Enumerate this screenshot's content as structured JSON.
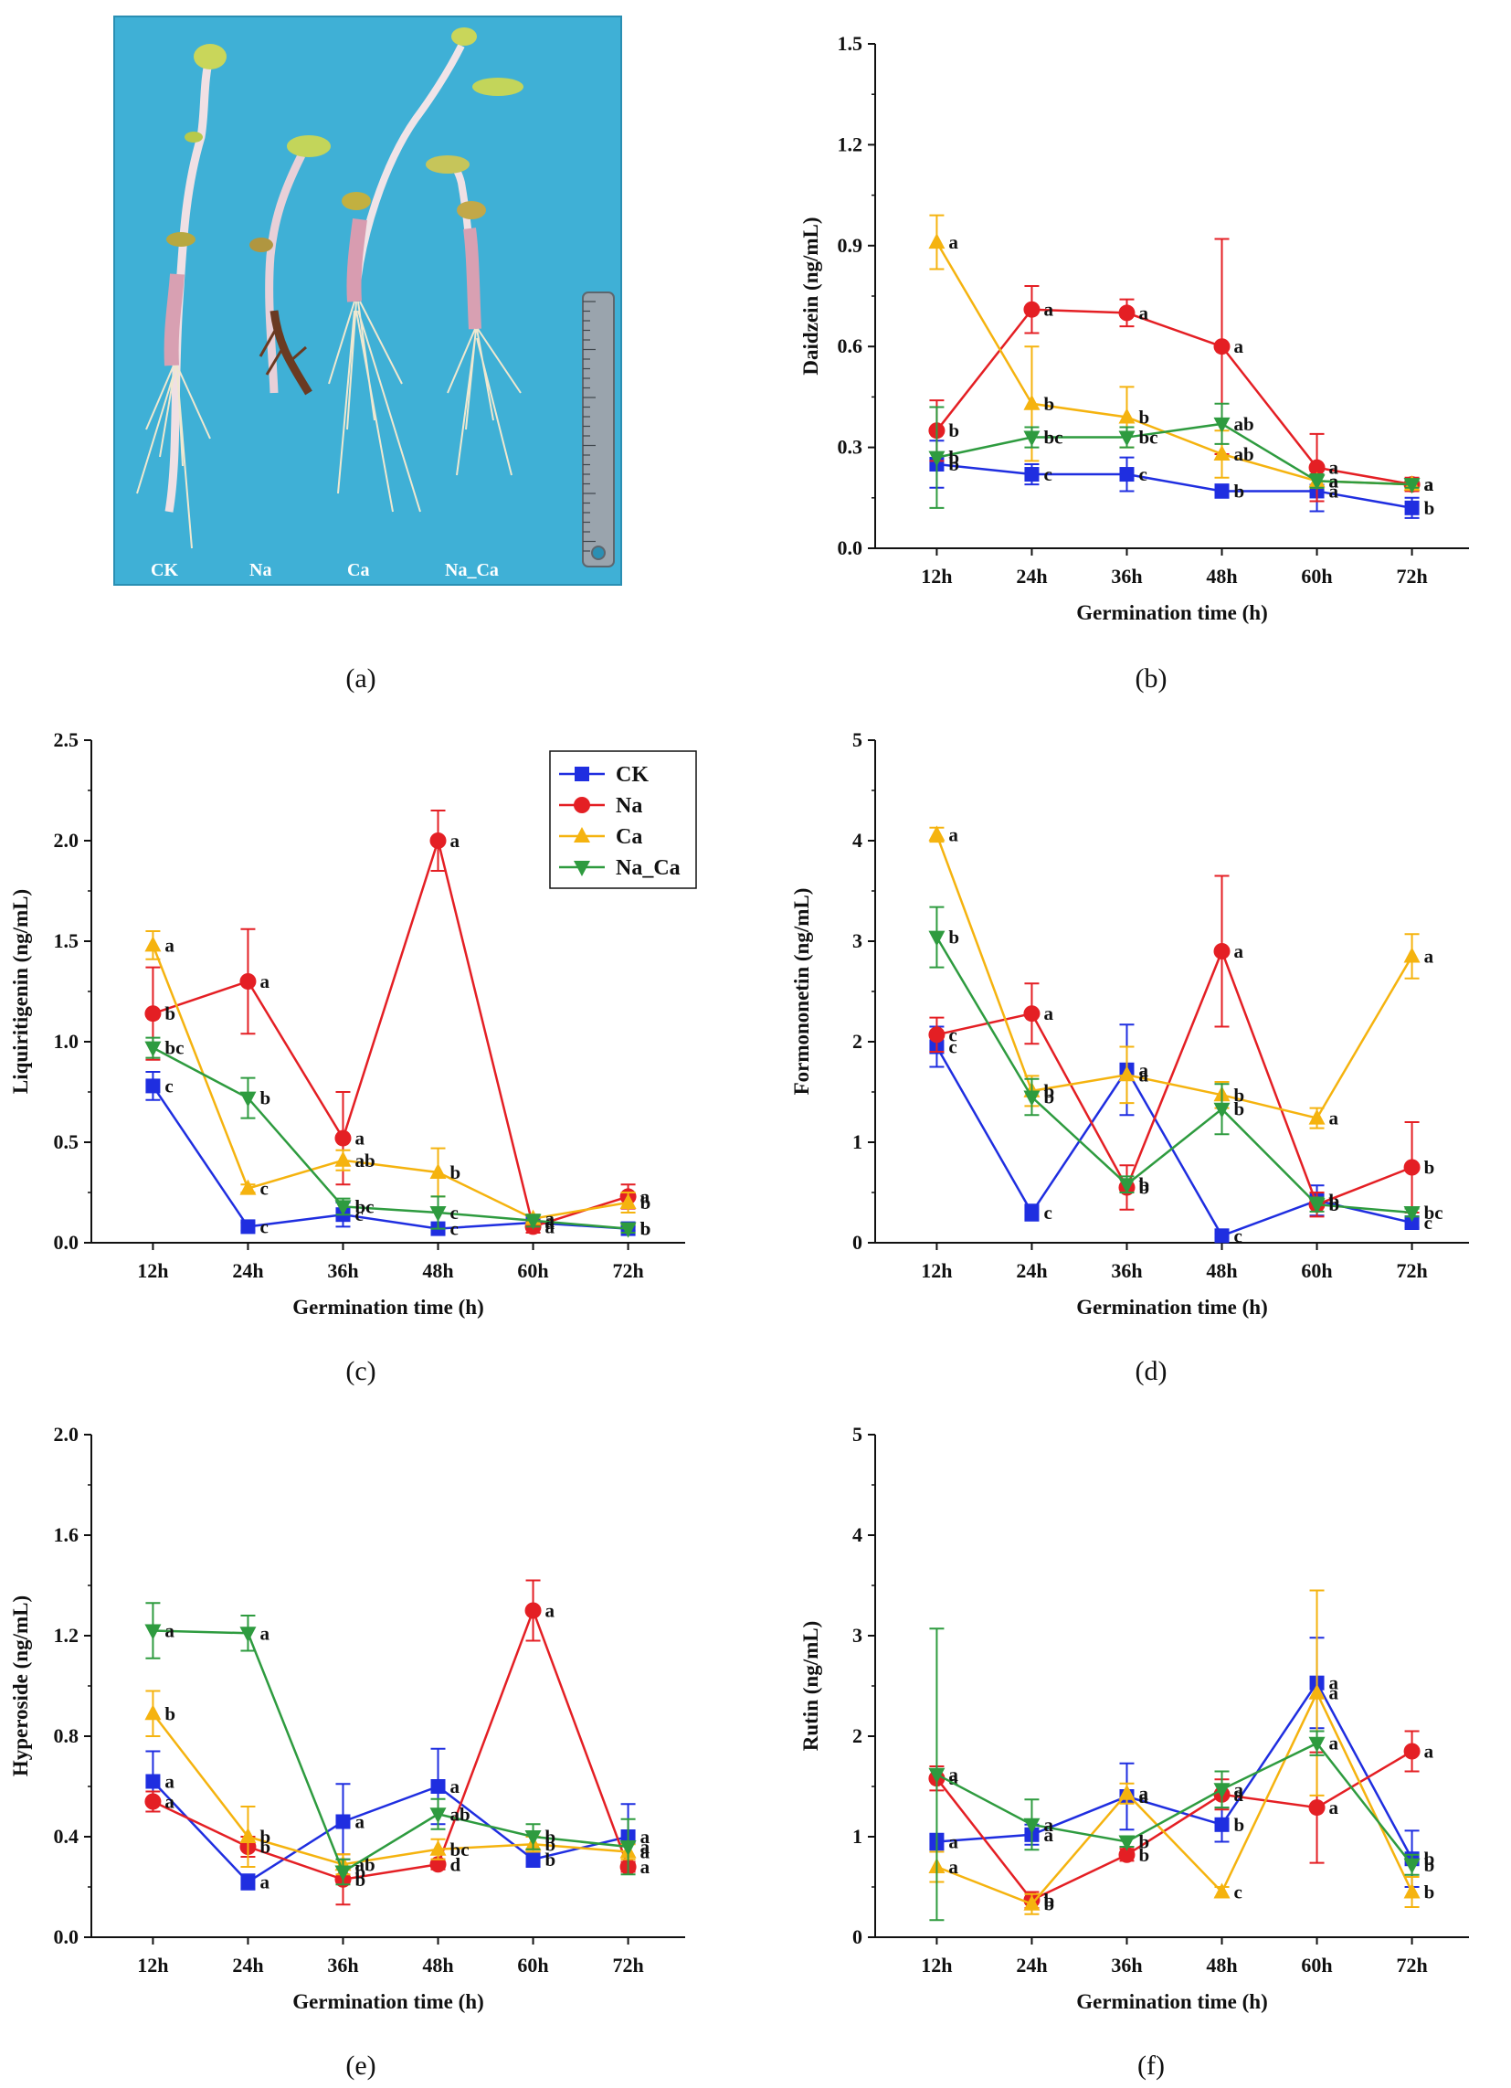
{
  "photo": {
    "labels": [
      "CK",
      "Na",
      "Ca",
      "Na_Ca"
    ],
    "background_color": "#3fb0d6"
  },
  "legend": [
    {
      "name": "CK",
      "color": "#1f2ee0",
      "marker": "square"
    },
    {
      "name": "Na",
      "color": "#e41f24",
      "marker": "circle"
    },
    {
      "name": "Ca",
      "color": "#f5b30f",
      "marker": "triangle-up"
    },
    {
      "name": "Na_Ca",
      "color": "#2e9b3f",
      "marker": "triangle-down"
    }
  ],
  "chart_data": [
    {
      "panel": "b",
      "caption": "(b)",
      "type": "line",
      "ylabel": "Daidzein (ng/mL)",
      "xlabel": "Germination time (h)",
      "ylim": [
        0,
        1.5
      ],
      "yticks": [
        0.0,
        0.3,
        0.6,
        0.9,
        1.2,
        1.5
      ],
      "categories": [
        "12h",
        "24h",
        "36h",
        "48h",
        "60h",
        "72h"
      ],
      "series": [
        {
          "name": "CK",
          "values": [
            0.25,
            0.22,
            0.22,
            0.17,
            0.17,
            0.12
          ],
          "errors": [
            0.07,
            0.03,
            0.05,
            0.02,
            0.06,
            0.03
          ],
          "labels": [
            "b",
            "c",
            "c",
            "b",
            "a",
            "b"
          ]
        },
        {
          "name": "Na",
          "values": [
            0.35,
            0.71,
            0.7,
            0.6,
            0.24,
            0.19
          ],
          "errors": [
            0.09,
            0.07,
            0.04,
            0.32,
            0.1,
            0.02
          ],
          "labels": [
            "b",
            "a",
            "a",
            "a",
            "a",
            "a"
          ]
        },
        {
          "name": "Ca",
          "values": [
            0.91,
            0.43,
            0.39,
            0.28,
            0.2,
            0.19
          ],
          "errors": [
            0.08,
            0.17,
            0.09,
            0.07,
            0.02,
            0.01
          ],
          "labels": [
            "a",
            "b",
            "b",
            "ab",
            "a",
            "a"
          ]
        },
        {
          "name": "Na_Ca",
          "values": [
            0.27,
            0.33,
            0.33,
            0.37,
            0.2,
            0.19
          ],
          "errors": [
            0.15,
            0.03,
            0.03,
            0.06,
            0.02,
            0.01
          ],
          "labels": [
            "b",
            "bc",
            "bc",
            "ab",
            "a",
            "a"
          ]
        }
      ]
    },
    {
      "panel": "c",
      "caption": "(c)",
      "type": "line",
      "ylabel": "Liquiritigenin (ng/mL)",
      "xlabel": "Germination time (h)",
      "ylim": [
        0,
        2.5
      ],
      "yticks": [
        0.0,
        0.5,
        1.0,
        1.5,
        2.0,
        2.5
      ],
      "categories": [
        "12h",
        "24h",
        "36h",
        "48h",
        "60h",
        "72h"
      ],
      "legend": true,
      "series": [
        {
          "name": "CK",
          "values": [
            0.78,
            0.08,
            0.14,
            0.07,
            0.1,
            0.07
          ],
          "errors": [
            0.07,
            0.02,
            0.06,
            0.02,
            0.02,
            0.01
          ],
          "labels": [
            "c",
            "c",
            "c",
            "c",
            "a",
            "b"
          ]
        },
        {
          "name": "Na",
          "values": [
            1.14,
            1.3,
            0.52,
            2.0,
            0.08,
            0.23
          ],
          "errors": [
            0.23,
            0.26,
            0.23,
            0.15,
            0.03,
            0.06
          ],
          "labels": [
            "b",
            "a",
            "a",
            "a",
            "a",
            "a"
          ]
        },
        {
          "name": "Ca",
          "values": [
            1.48,
            0.27,
            0.41,
            0.35,
            0.12,
            0.2
          ],
          "errors": [
            0.07,
            0.02,
            0.05,
            0.12,
            0.02,
            0.05
          ],
          "labels": [
            "a",
            "c",
            "ab",
            "b",
            "a",
            "b"
          ]
        },
        {
          "name": "Na_Ca",
          "values": [
            0.97,
            0.72,
            0.18,
            0.15,
            0.11,
            0.07
          ],
          "errors": [
            0.05,
            0.1,
            0.04,
            0.08,
            0.03,
            0.02
          ],
          "labels": [
            "bc",
            "b",
            "bc",
            "c",
            "a",
            "b"
          ]
        }
      ]
    },
    {
      "panel": "d",
      "caption": "(d)",
      "type": "line",
      "ylabel": "Formononetin (ng/mL)",
      "xlabel": "Germination time (h)",
      "ylim": [
        0,
        5
      ],
      "yticks": [
        0,
        1,
        2,
        3,
        4,
        5
      ],
      "categories": [
        "12h",
        "24h",
        "36h",
        "48h",
        "60h",
        "72h"
      ],
      "series": [
        {
          "name": "CK",
          "values": [
            1.95,
            0.3,
            1.72,
            0.07,
            0.42,
            0.2
          ],
          "errors": [
            0.2,
            0.08,
            0.45,
            0.02,
            0.15,
            0.05
          ],
          "labels": [
            "c",
            "c",
            "a",
            "c",
            "b",
            "c"
          ]
        },
        {
          "name": "Na",
          "values": [
            2.07,
            2.28,
            0.55,
            2.9,
            0.38,
            0.75
          ],
          "errors": [
            0.17,
            0.3,
            0.22,
            0.75,
            0.12,
            0.45
          ],
          "labels": [
            "c",
            "a",
            "b",
            "a",
            "b",
            "b"
          ]
        },
        {
          "name": "Ca",
          "values": [
            4.06,
            1.51,
            1.67,
            1.47,
            1.24,
            2.85
          ],
          "errors": [
            0.07,
            0.15,
            0.28,
            0.13,
            0.1,
            0.22
          ],
          "labels": [
            "a",
            "b",
            "a",
            "b",
            "a",
            "a"
          ]
        },
        {
          "name": "Na_Ca",
          "values": [
            3.04,
            1.45,
            0.58,
            1.33,
            0.38,
            0.3
          ],
          "errors": [
            0.3,
            0.18,
            0.08,
            0.25,
            0.07,
            0.04
          ],
          "labels": [
            "b",
            "b",
            "b",
            "b",
            "b",
            "bc"
          ]
        }
      ]
    },
    {
      "panel": "e",
      "caption": "(e)",
      "type": "line",
      "ylabel": "Hyperoside (ng/mL)",
      "xlabel": "Germination time (h)",
      "ylim": [
        0,
        2.0
      ],
      "yticks": [
        0.0,
        0.4,
        0.8,
        1.2,
        1.6,
        2.0
      ],
      "categories": [
        "12h",
        "24h",
        "36h",
        "48h",
        "60h",
        "72h"
      ],
      "series": [
        {
          "name": "CK",
          "values": [
            0.62,
            0.22,
            0.46,
            0.6,
            0.31,
            0.4
          ],
          "errors": [
            0.12,
            0.03,
            0.15,
            0.15,
            0.03,
            0.13
          ],
          "labels": [
            "a",
            "a",
            "a",
            "a",
            "b",
            "a"
          ]
        },
        {
          "name": "Na",
          "values": [
            0.54,
            0.36,
            0.23,
            0.29,
            1.3,
            0.28
          ],
          "errors": [
            0.04,
            0.04,
            0.1,
            0.02,
            0.12,
            0.02
          ],
          "labels": [
            "a",
            "b",
            "b",
            "d",
            "a",
            "a"
          ]
        },
        {
          "name": "Ca",
          "values": [
            0.89,
            0.4,
            0.29,
            0.35,
            0.37,
            0.34
          ],
          "errors": [
            0.09,
            0.12,
            0.04,
            0.04,
            0.03,
            0.03
          ],
          "labels": [
            "b",
            "b",
            "ab",
            "bc",
            "b",
            "a"
          ]
        },
        {
          "name": "Na_Ca",
          "values": [
            1.22,
            1.21,
            0.26,
            0.49,
            0.4,
            0.36
          ],
          "errors": [
            0.11,
            0.07,
            0.05,
            0.06,
            0.05,
            0.11
          ],
          "labels": [
            "a",
            "a",
            "b",
            "ab",
            "b",
            "a"
          ]
        }
      ]
    },
    {
      "panel": "f",
      "caption": "(f)",
      "type": "line",
      "ylabel": "Rutin (ng/mL)",
      "xlabel": "Germination time (h)",
      "ylim": [
        0,
        5
      ],
      "yticks": [
        0,
        1,
        2,
        3,
        4,
        5
      ],
      "categories": [
        "12h",
        "24h",
        "36h",
        "48h",
        "60h",
        "72h"
      ],
      "series": [
        {
          "name": "CK",
          "values": [
            0.95,
            1.02,
            1.4,
            1.12,
            2.53,
            0.78
          ],
          "errors": [
            0.08,
            0.1,
            0.33,
            0.17,
            0.45,
            0.28
          ],
          "labels": [
            "a",
            "a",
            "a",
            "b",
            "a",
            "b"
          ]
        },
        {
          "name": "Na",
          "values": [
            1.58,
            0.37,
            0.82,
            1.42,
            1.29,
            1.85
          ],
          "errors": [
            0.12,
            0.08,
            0.06,
            0.15,
            0.55,
            0.2
          ],
          "labels": [
            "a",
            "b",
            "b",
            "a",
            "a",
            "a"
          ]
        },
        {
          "name": "Ca",
          "values": [
            0.7,
            0.33,
            1.43,
            0.45,
            2.43,
            0.45
          ],
          "errors": [
            0.15,
            0.1,
            0.1,
            0.05,
            1.02,
            0.15
          ],
          "labels": [
            "a",
            "b",
            "a",
            "c",
            "a",
            "b"
          ]
        },
        {
          "name": "Na_Ca",
          "values": [
            1.62,
            1.12,
            0.95,
            1.47,
            1.93,
            0.72
          ],
          "errors": [
            1.45,
            0.25,
            0.05,
            0.18,
            0.12,
            0.1
          ],
          "labels": [
            "a",
            "a",
            "b",
            "a",
            "a",
            "b"
          ]
        }
      ]
    }
  ],
  "captions": {
    "a": "(a)"
  }
}
